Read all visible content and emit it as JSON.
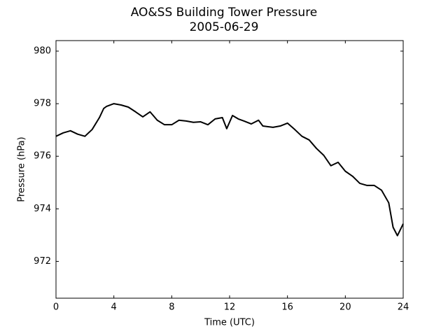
{
  "chart_data": {
    "type": "line",
    "title": "AO&SS Building Tower Pressure",
    "subtitle": "2005-06-29",
    "x_label": "Time (UTC)",
    "y_label": "Pressure (hPa)",
    "x": [
      0,
      0.5,
      1,
      1.5,
      2,
      2.5,
      3,
      3.3,
      3.5,
      4,
      4.5,
      5,
      5.5,
      6,
      6.5,
      7,
      7.5,
      8,
      8.5,
      9,
      9.5,
      10,
      10.5,
      11,
      11.5,
      11.8,
      12.2,
      12.6,
      13,
      13.5,
      14,
      14.3,
      15,
      15.5,
      16,
      16.5,
      17,
      17.5,
      18,
      18.5,
      19,
      19.5,
      20,
      20.5,
      21,
      21.5,
      22,
      22.5,
      23,
      23.3,
      23.6,
      24
    ],
    "series": [
      {
        "name": "Pressure",
        "color": "#000000",
        "values": [
          976.76,
          976.89,
          976.97,
          976.84,
          976.76,
          977.02,
          977.47,
          977.82,
          977.9,
          978.0,
          977.95,
          977.87,
          977.69,
          977.5,
          977.69,
          977.37,
          977.2,
          977.2,
          977.37,
          977.34,
          977.29,
          977.31,
          977.2,
          977.42,
          977.47,
          977.05,
          977.55,
          977.42,
          977.34,
          977.23,
          977.37,
          977.15,
          977.1,
          977.15,
          977.26,
          977.02,
          976.76,
          976.62,
          976.3,
          976.04,
          975.64,
          975.77,
          975.43,
          975.24,
          974.97,
          974.89,
          974.89,
          974.71,
          974.23,
          973.3,
          972.98,
          973.43
        ]
      }
    ],
    "xlim": [
      0,
      24
    ],
    "xticks": [
      0,
      4,
      8,
      12,
      16,
      20,
      24
    ],
    "ylim": [
      970.6,
      980.4
    ],
    "yticks": [
      972,
      974,
      976,
      978,
      980
    ]
  }
}
